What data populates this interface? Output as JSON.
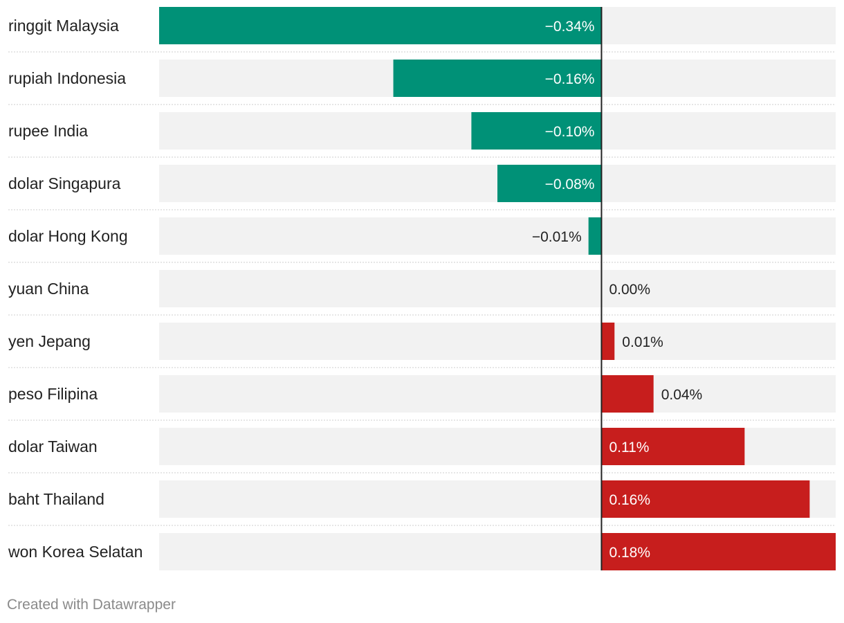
{
  "chart_data": {
    "type": "bar",
    "orientation": "horizontal",
    "categories": [
      "ringgit Malaysia",
      "rupiah Indonesia",
      "rupee India",
      "dolar Singapura",
      "dolar Hong Kong",
      "yuan China",
      "yen Jepang",
      "peso Filipina",
      "dolar Taiwan",
      "baht Thailand",
      "won Korea Selatan"
    ],
    "values": [
      -0.34,
      -0.16,
      -0.1,
      -0.08,
      -0.01,
      0.0,
      0.01,
      0.04,
      0.11,
      0.16,
      0.18
    ],
    "value_labels": [
      "−0.34%",
      "−0.16%",
      "−0.10%",
      "−0.08%",
      "−0.01%",
      "0.00%",
      "0.01%",
      "0.04%",
      "0.11%",
      "0.16%",
      "0.18%"
    ],
    "xlim": [
      -0.34,
      0.18
    ],
    "colors": {
      "negative": "#009177",
      "positive": "#c71e1d",
      "background_bar": "#f2f2f2",
      "zero_line": "#222222",
      "separator": "#cccccc"
    }
  },
  "footer": {
    "credit": "Created with Datawrapper"
  }
}
